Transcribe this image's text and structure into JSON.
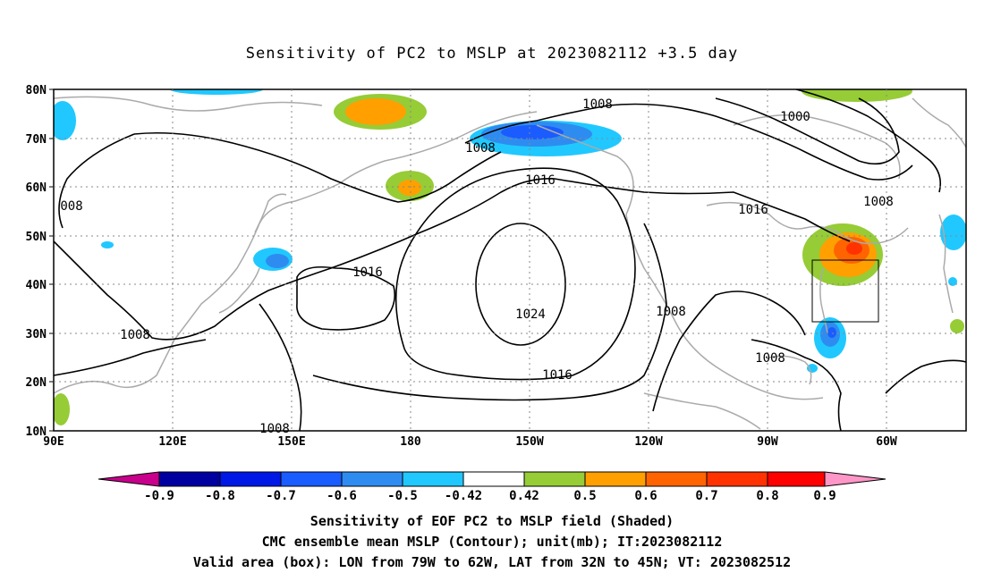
{
  "title": "Sensitivity of PC2 to MSLP at 2023082112 +3.5 day",
  "map": {
    "lat_ticks": [
      "80N",
      "70N",
      "60N",
      "50N",
      "40N",
      "30N",
      "20N",
      "10N"
    ],
    "lon_ticks": [
      "90E",
      "120E",
      "150E",
      "180",
      "150W",
      "120W",
      "90W",
      "60W"
    ],
    "contours": [
      "1008",
      "1000",
      "1008",
      "1008",
      "1016",
      "1016",
      "1016",
      "1024",
      "1008",
      "1008",
      "1016",
      "008",
      "1008",
      "1008"
    ],
    "box": {
      "lon": [
        "79W",
        "62W"
      ],
      "lat": [
        "32N",
        "45N"
      ]
    }
  },
  "colorbar": {
    "labels": [
      "-0.9",
      "-0.8",
      "-0.7",
      "-0.6",
      "-0.5",
      "-0.42",
      "0.42",
      "0.5",
      "0.6",
      "0.7",
      "0.8",
      "0.9"
    ],
    "colors": [
      "#c8008c",
      "#0000a0",
      "#0018e6",
      "#1a5cff",
      "#2e8cf0",
      "#20c8ff",
      "#ffffff",
      "#96cc36",
      "#ffa000",
      "#ff6400",
      "#ff3200",
      "#ff0000",
      "#ff96c8"
    ]
  },
  "caption": [
    "Sensitivity of EOF PC2 to MSLP field (Shaded)",
    "CMC ensemble mean MSLP (Contour); unit(mb); IT:2023082112",
    "Valid area (box): LON from 79W to 62W, LAT from 32N to 45N; VT: 2023082512"
  ]
}
